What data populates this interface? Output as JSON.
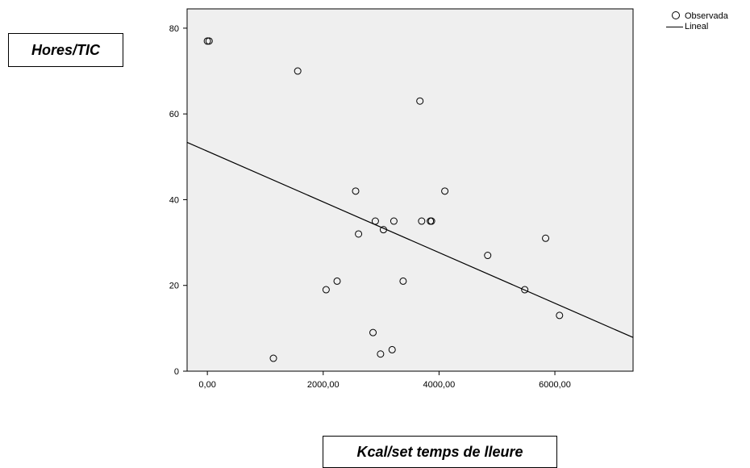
{
  "chart_data": {
    "type": "scatter",
    "title": "",
    "xlabel": "Kcal/set temps de lleure",
    "ylabel": "Hores/TIC",
    "xlim": [
      -350,
      7350
    ],
    "ylim": [
      0,
      84.5
    ],
    "xticks": [
      0,
      2000,
      4000,
      6000
    ],
    "xtick_labels": [
      "0,00",
      "2000,00",
      "4000,00",
      "6000,00"
    ],
    "yticks": [
      0,
      20,
      40,
      60,
      80
    ],
    "ytick_labels": [
      "0",
      "20",
      "40",
      "60",
      "80"
    ],
    "grid": false,
    "legend_position": "top-right",
    "series": [
      {
        "name": "Observada",
        "kind": "points",
        "points": [
          {
            "x": 0,
            "y": 77
          },
          {
            "x": 30,
            "y": 77
          },
          {
            "x": 1560,
            "y": 70
          },
          {
            "x": 3670,
            "y": 63
          },
          {
            "x": 2560,
            "y": 42
          },
          {
            "x": 4100,
            "y": 42
          },
          {
            "x": 2900,
            "y": 35
          },
          {
            "x": 3220,
            "y": 35
          },
          {
            "x": 3700,
            "y": 35
          },
          {
            "x": 3850,
            "y": 35
          },
          {
            "x": 3870,
            "y": 35
          },
          {
            "x": 3040,
            "y": 33
          },
          {
            "x": 2610,
            "y": 32
          },
          {
            "x": 5840,
            "y": 31
          },
          {
            "x": 4840,
            "y": 27
          },
          {
            "x": 2240,
            "y": 21
          },
          {
            "x": 3380,
            "y": 21
          },
          {
            "x": 2050,
            "y": 19
          },
          {
            "x": 5480,
            "y": 19
          },
          {
            "x": 6080,
            "y": 13
          },
          {
            "x": 2860,
            "y": 9
          },
          {
            "x": 3190,
            "y": 5
          },
          {
            "x": 2990,
            "y": 4
          },
          {
            "x": 1140,
            "y": 3
          }
        ]
      },
      {
        "name": "Lineal",
        "kind": "fit-line",
        "intercept": 51.3,
        "slope": -0.00591
      }
    ]
  }
}
